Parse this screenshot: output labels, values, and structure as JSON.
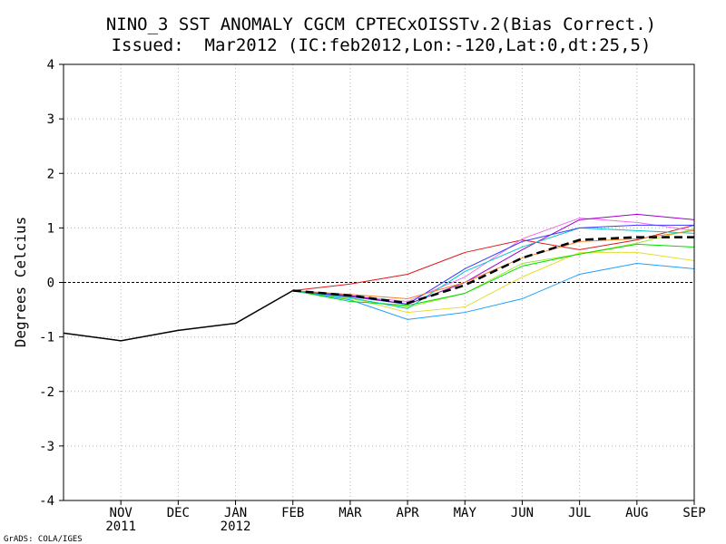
{
  "chart_data": {
    "type": "line",
    "title_line1": "NINO_3 SST ANOMALY CGCM CPTECxOISSTv.2(Bias Correct.)",
    "title_line2": "Issued:  Mar2012 (IC:feb2012,Lon:-120,Lat:0,dt:25,5)",
    "ylabel": "Degrees Celcius",
    "credit": "GrADS: COLA/IGES",
    "ylim": [
      -4,
      4
    ],
    "yticks": [
      -4,
      -3,
      -2,
      -1,
      0,
      1,
      2,
      3,
      4
    ],
    "ytick_labels": [
      "-4",
      "-3",
      "-2",
      "-1",
      "0",
      "1",
      "2",
      "3",
      "4"
    ],
    "x_range": [
      0,
      11
    ],
    "xticks": [
      {
        "x": 1,
        "label": "NOV",
        "sublabel": "2011"
      },
      {
        "x": 2,
        "label": "DEC",
        "sublabel": ""
      },
      {
        "x": 3,
        "label": "JAN",
        "sublabel": "2012"
      },
      {
        "x": 4,
        "label": "FEB",
        "sublabel": ""
      },
      {
        "x": 5,
        "label": "MAR",
        "sublabel": ""
      },
      {
        "x": 6,
        "label": "APR",
        "sublabel": ""
      },
      {
        "x": 7,
        "label": "MAY",
        "sublabel": ""
      },
      {
        "x": 8,
        "label": "JUN",
        "sublabel": ""
      },
      {
        "x": 9,
        "label": "JUL",
        "sublabel": ""
      },
      {
        "x": 10,
        "label": "AUG",
        "sublabel": ""
      },
      {
        "x": 11,
        "label": "SEP",
        "sublabel": ""
      }
    ],
    "zero_line": true,
    "grid": true,
    "observed": {
      "color": "#000000",
      "x": [
        0,
        1,
        2,
        3,
        4
      ],
      "values": [
        -0.93,
        -1.07,
        -0.88,
        -0.75,
        -0.15
      ]
    },
    "ensemble_x": [
      4,
      5,
      6,
      7,
      8,
      9,
      10,
      11
    ],
    "members": [
      {
        "color": "#e01818",
        "values": [
          -0.15,
          -0.03,
          0.15,
          0.55,
          0.78,
          0.6,
          0.78,
          1.05
        ]
      },
      {
        "color": "#a0e632",
        "values": [
          -0.15,
          -0.3,
          -0.45,
          -0.2,
          0.35,
          0.52,
          0.72,
          0.98
        ]
      },
      {
        "color": "#e6dc32",
        "values": [
          -0.15,
          -0.28,
          -0.55,
          -0.45,
          0.1,
          0.55,
          0.55,
          0.4
        ]
      },
      {
        "color": "#1ea0ff",
        "values": [
          -0.15,
          -0.32,
          -0.68,
          -0.55,
          -0.3,
          0.15,
          0.35,
          0.25
        ]
      },
      {
        "color": "#00dc00",
        "values": [
          -0.15,
          -0.35,
          -0.42,
          -0.2,
          0.3,
          0.52,
          0.7,
          0.65
        ]
      },
      {
        "color": "#f06ef0",
        "values": [
          -0.15,
          -0.25,
          -0.35,
          0.1,
          0.8,
          1.18,
          1.1,
          0.95
        ]
      },
      {
        "color": "#a000c8",
        "values": [
          -0.15,
          -0.24,
          -0.4,
          0.0,
          0.6,
          1.15,
          1.25,
          1.15
        ]
      },
      {
        "color": "#00c8c8",
        "values": [
          -0.15,
          -0.28,
          -0.48,
          0.2,
          0.65,
          1.0,
          0.95,
          0.9
        ]
      },
      {
        "color": "#3c3cff",
        "values": [
          -0.15,
          -0.26,
          -0.4,
          0.25,
          0.75,
          1.0,
          1.05,
          1.05
        ]
      },
      {
        "color": "#f08228",
        "values": [
          -0.15,
          -0.22,
          -0.3,
          0.0,
          0.45,
          0.75,
          0.8,
          0.95
        ]
      }
    ],
    "ensemble_mean": {
      "color": "#000000",
      "values": [
        -0.15,
        -0.24,
        -0.38,
        -0.05,
        0.45,
        0.78,
        0.83,
        0.83
      ]
    }
  }
}
